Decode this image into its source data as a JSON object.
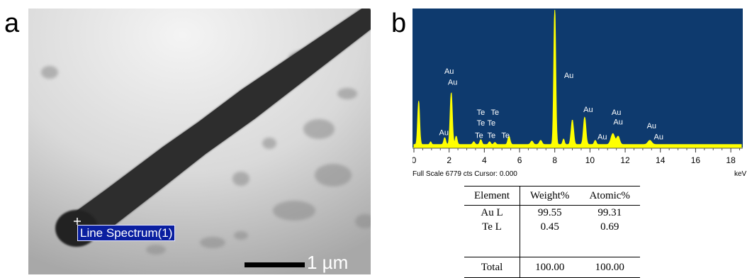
{
  "panel_a": {
    "letter": "a",
    "line_spectrum_label": "Line Spectrum(1)",
    "scale_bar_label": "1 µm"
  },
  "panel_b": {
    "letter": "b",
    "full_scale_text": "Full Scale 6779 cts Cursor: 0.000",
    "x_unit": "keV",
    "peak_labels": [
      {
        "text": "Au",
        "x": 2.0,
        "y": 0.53
      },
      {
        "text": "Au",
        "x": 2.2,
        "y": 0.45
      },
      {
        "text": "Te",
        "x": 3.8,
        "y": 0.23
      },
      {
        "text": "Te",
        "x": 4.6,
        "y": 0.23
      },
      {
        "text": "Te",
        "x": 3.8,
        "y": 0.15
      },
      {
        "text": "Te",
        "x": 4.4,
        "y": 0.15
      },
      {
        "text": "Te",
        "x": 3.7,
        "y": 0.06
      },
      {
        "text": "Te",
        "x": 4.4,
        "y": 0.06
      },
      {
        "text": "Te",
        "x": 5.2,
        "y": 0.06
      },
      {
        "text": "Au",
        "x": 1.7,
        "y": 0.08
      },
      {
        "text": "Au",
        "x": 8.8,
        "y": 0.5
      },
      {
        "text": "Au",
        "x": 9.9,
        "y": 0.25
      },
      {
        "text": "Au",
        "x": 10.7,
        "y": 0.05
      },
      {
        "text": "Au",
        "x": 11.5,
        "y": 0.23
      },
      {
        "text": "Au",
        "x": 11.6,
        "y": 0.16
      },
      {
        "text": "Au",
        "x": 13.5,
        "y": 0.13
      },
      {
        "text": "Au",
        "x": 13.9,
        "y": 0.05
      }
    ]
  },
  "chart_data": {
    "type": "line",
    "xlabel": "keV",
    "xlim": [
      0,
      18.6
    ],
    "ylim": [
      0,
      1
    ],
    "x_ticks": [
      0,
      2,
      4,
      6,
      8,
      10,
      12,
      14,
      16,
      18
    ],
    "background_color": "#0e3a6e",
    "series_color": "#ffff00",
    "peaks": [
      {
        "x": 0.27,
        "y": 0.32,
        "w": 0.08
      },
      {
        "x": 0.95,
        "y": 0.02,
        "w": 0.06
      },
      {
        "x": 1.75,
        "y": 0.05,
        "w": 0.08
      },
      {
        "x": 2.12,
        "y": 0.38,
        "w": 0.09
      },
      {
        "x": 2.4,
        "y": 0.06,
        "w": 0.08
      },
      {
        "x": 3.4,
        "y": 0.02,
        "w": 0.08
      },
      {
        "x": 3.8,
        "y": 0.035,
        "w": 0.08
      },
      {
        "x": 4.3,
        "y": 0.02,
        "w": 0.08
      },
      {
        "x": 4.6,
        "y": 0.015,
        "w": 0.08
      },
      {
        "x": 5.4,
        "y": 0.06,
        "w": 0.09
      },
      {
        "x": 6.7,
        "y": 0.025,
        "w": 0.1
      },
      {
        "x": 7.2,
        "y": 0.03,
        "w": 0.1
      },
      {
        "x": 8.0,
        "y": 1.0,
        "w": 0.08
      },
      {
        "x": 8.5,
        "y": 0.04,
        "w": 0.07
      },
      {
        "x": 9.0,
        "y": 0.18,
        "w": 0.1
      },
      {
        "x": 9.7,
        "y": 0.2,
        "w": 0.1
      },
      {
        "x": 10.3,
        "y": 0.03,
        "w": 0.08
      },
      {
        "x": 11.3,
        "y": 0.08,
        "w": 0.15
      },
      {
        "x": 11.6,
        "y": 0.06,
        "w": 0.12
      },
      {
        "x": 13.4,
        "y": 0.03,
        "w": 0.15
      }
    ]
  },
  "table": {
    "headers": [
      "Element",
      "Weight%",
      "Atomic%"
    ],
    "rows": [
      [
        "Au L",
        "99.55",
        "99.31"
      ],
      [
        "Te L",
        "0.45",
        "0.69"
      ]
    ],
    "total": [
      "Total",
      "100.00",
      "100.00"
    ]
  }
}
